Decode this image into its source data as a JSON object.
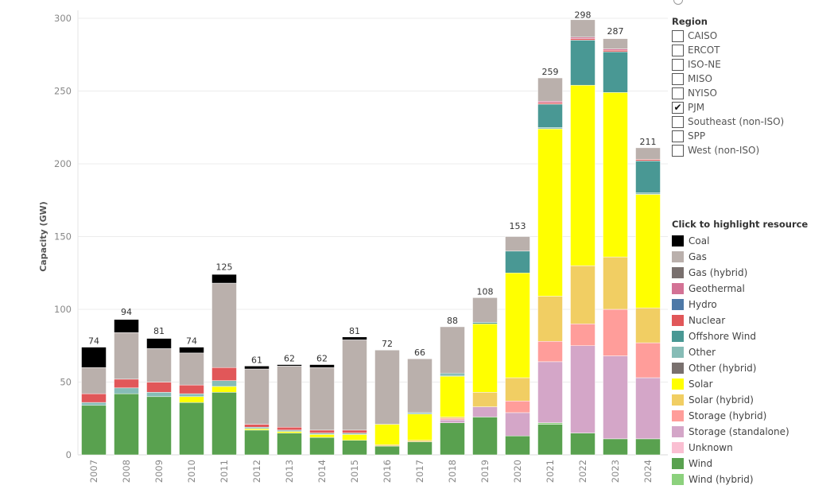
{
  "chart_data": {
    "type": "bar",
    "stacked": true,
    "ylabel": "Capacity (GW)",
    "ylim": [
      0,
      300
    ],
    "yticks": [
      0,
      50,
      100,
      150,
      200,
      250,
      300
    ],
    "grid": true,
    "categories": [
      "2007",
      "2008",
      "2009",
      "2010",
      "2011",
      "2012",
      "2013",
      "2014",
      "2015",
      "2016",
      "2017",
      "2018",
      "2019",
      "2020",
      "2021",
      "2022",
      "2023",
      "2024"
    ],
    "totals": [
      74,
      94,
      81,
      74,
      125,
      61,
      62,
      62,
      81,
      72,
      66,
      88,
      108,
      153,
      259,
      298,
      287,
      211
    ],
    "series": [
      {
        "name": "Wind",
        "color": "#59a14f",
        "values": [
          34,
          42,
          40,
          36,
          43,
          17,
          15,
          12,
          10,
          6,
          9,
          22,
          26,
          13,
          21,
          15,
          11,
          11
        ]
      },
      {
        "name": "Wind (hybrid)",
        "color": "#8cd17d",
        "values": [
          0,
          0,
          0,
          0,
          0,
          0,
          0,
          0,
          0,
          0,
          0,
          0,
          0,
          0,
          1,
          0,
          0,
          0
        ]
      },
      {
        "name": "Unknown",
        "color": "#fabfd2",
        "values": [
          0,
          0,
          0,
          0,
          0,
          0,
          0,
          0,
          0,
          0,
          0,
          0,
          0,
          0,
          0,
          0,
          0,
          0
        ]
      },
      {
        "name": "Storage (standalone)",
        "color": "#d4a6c8",
        "values": [
          0,
          0,
          0,
          0,
          0,
          0,
          0,
          0,
          0,
          0,
          0,
          2,
          7,
          16,
          42,
          60,
          57,
          42
        ]
      },
      {
        "name": "Storage (hybrid)",
        "color": "#ff9d9a",
        "values": [
          0,
          0,
          0,
          0,
          0,
          0,
          0,
          0,
          0,
          0,
          0,
          1,
          0,
          8,
          14,
          15,
          32,
          24
        ]
      },
      {
        "name": "Solar (hybrid)",
        "color": "#f1ce63",
        "values": [
          0,
          0,
          0,
          0,
          0,
          0,
          0,
          0,
          0,
          1,
          1,
          1,
          10,
          16,
          31,
          40,
          36,
          24
        ]
      },
      {
        "name": "Solar",
        "color": "#ffff00",
        "values": [
          0,
          0,
          0,
          4,
          4,
          1,
          1,
          2,
          4,
          14,
          18,
          28,
          47,
          72,
          115,
          124,
          113,
          78
        ]
      },
      {
        "name": "Other (hybrid)",
        "color": "#79706e",
        "values": [
          0,
          0,
          0,
          0,
          0,
          0,
          0,
          0,
          0,
          0,
          0,
          0,
          0,
          0,
          0,
          0,
          0,
          0
        ]
      },
      {
        "name": "Other",
        "color": "#86bcb6",
        "values": [
          2,
          4,
          3,
          2,
          4,
          1,
          1,
          1,
          1,
          0,
          1,
          1,
          0,
          0,
          1,
          0,
          0,
          1
        ]
      },
      {
        "name": "Offshore Wind",
        "color": "#499894",
        "values": [
          0,
          0,
          0,
          0,
          0,
          0,
          0,
          0,
          0,
          0,
          0,
          1,
          1,
          15,
          16,
          31,
          28,
          22
        ]
      },
      {
        "name": "Nuclear",
        "color": "#e15759",
        "values": [
          6,
          6,
          7,
          6,
          9,
          2,
          2,
          2,
          2,
          0,
          0,
          0,
          0,
          0,
          1,
          1,
          1,
          1
        ]
      },
      {
        "name": "Hydro",
        "color": "#4e79a7",
        "values": [
          0,
          0,
          0,
          0,
          0,
          0,
          0,
          0,
          0,
          0,
          0,
          0,
          0,
          0,
          0,
          0,
          0,
          0
        ]
      },
      {
        "name": "Geothermal",
        "color": "#d37295",
        "values": [
          0,
          0,
          0,
          0,
          0,
          0,
          0,
          0,
          0,
          0,
          0,
          0,
          0,
          0,
          1,
          1,
          1,
          0
        ]
      },
      {
        "name": "Gas (hybrid)",
        "color": "#79706e",
        "values": [
          0,
          0,
          0,
          0,
          0,
          0,
          0,
          0,
          0,
          0,
          0,
          0,
          0,
          0,
          0,
          0,
          0,
          0
        ]
      },
      {
        "name": "Gas",
        "color": "#bab0ac",
        "values": [
          18,
          32,
          23,
          22,
          58,
          38,
          42,
          43,
          62,
          51,
          37,
          32,
          17,
          10,
          16,
          12,
          7,
          8
        ]
      },
      {
        "name": "Coal",
        "color": "#000000",
        "values": [
          14,
          9,
          7,
          4,
          6,
          2,
          1,
          2,
          2,
          0,
          0,
          0,
          0,
          0,
          0,
          0,
          0,
          0
        ]
      }
    ]
  },
  "region_filter": {
    "title": "Region",
    "items": [
      {
        "label": "CAISO",
        "check": ""
      },
      {
        "label": "ERCOT",
        "check": ""
      },
      {
        "label": "ISO-NE",
        "check": ""
      },
      {
        "label": "MISO",
        "check": ""
      },
      {
        "label": "NYISO",
        "check": ""
      },
      {
        "label": "PJM",
        "check": "✔"
      },
      {
        "label": "Southeast (non-ISO)",
        "check": ""
      },
      {
        "label": "SPP",
        "check": ""
      },
      {
        "label": "West (non-ISO)",
        "check": ""
      }
    ]
  },
  "legend": {
    "title": "Click to highlight resource",
    "items": [
      {
        "label": "Coal",
        "color": "#000000"
      },
      {
        "label": "Gas",
        "color": "#bab0ac"
      },
      {
        "label": "Gas (hybrid)",
        "color": "#79706e"
      },
      {
        "label": "Geothermal",
        "color": "#d37295"
      },
      {
        "label": "Hydro",
        "color": "#4e79a7"
      },
      {
        "label": "Nuclear",
        "color": "#e15759"
      },
      {
        "label": "Offshore Wind",
        "color": "#499894"
      },
      {
        "label": "Other",
        "color": "#86bcb6"
      },
      {
        "label": "Other (hybrid)",
        "color": "#79706e"
      },
      {
        "label": "Solar",
        "color": "#ffff00"
      },
      {
        "label": "Solar (hybrid)",
        "color": "#f1ce63"
      },
      {
        "label": "Storage (hybrid)",
        "color": "#ff9d9a"
      },
      {
        "label": "Storage (standalone)",
        "color": "#d4a6c8"
      },
      {
        "label": "Unknown",
        "color": "#fabfd2"
      },
      {
        "label": "Wind",
        "color": "#59a14f"
      },
      {
        "label": "Wind (hybrid)",
        "color": "#8cd17d"
      }
    ]
  }
}
